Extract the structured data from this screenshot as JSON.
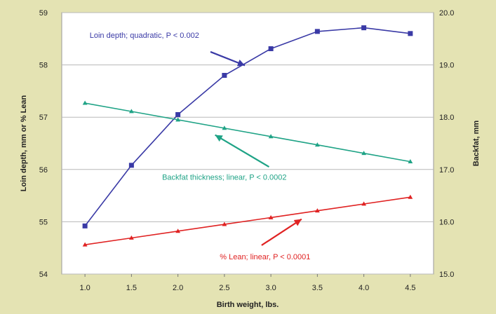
{
  "chart_data": {
    "type": "line",
    "title": "",
    "xlabel": "Birth weight, lbs.",
    "ylabel_left": "Loin depth, mm or % Lean",
    "ylabel_right": "Backfat, mm",
    "xlim": [
      0.75,
      4.75
    ],
    "ylim_left": [
      54,
      59
    ],
    "ylim_right": [
      15.0,
      20.0
    ],
    "x_ticks": [
      "1.0",
      "1.5",
      "2.0",
      "2.5",
      "3.0",
      "3.5",
      "4.0",
      "4.5"
    ],
    "y_left_ticks": [
      "54",
      "55",
      "56",
      "57",
      "58",
      "59"
    ],
    "y_right_ticks": [
      "15.0",
      "16.0",
      "17.0",
      "18.0",
      "19.0",
      "20.0"
    ],
    "grid": true,
    "legend": "none",
    "colors": {
      "loin": "#3a3aa6",
      "backfat": "#1fa386",
      "lean": "#e02222",
      "plot_bg": "#ffffff",
      "page_bg": "#e4e3b3"
    },
    "series": [
      {
        "key": "loin",
        "axis": "left",
        "marker": "square",
        "x": [
          1.0,
          1.5,
          2.0,
          2.5,
          3.0,
          3.5,
          4.0,
          4.5
        ],
        "values": [
          54.92,
          56.08,
          57.05,
          57.8,
          58.31,
          58.64,
          58.71,
          58.6
        ]
      },
      {
        "key": "backfat",
        "axis": "right",
        "marker": "triangle",
        "x": [
          1.0,
          1.5,
          2.0,
          2.5,
          3.0,
          3.5,
          4.0,
          4.5
        ],
        "values": [
          18.27,
          18.11,
          17.95,
          17.79,
          17.63,
          17.47,
          17.31,
          17.15
        ]
      },
      {
        "key": "lean",
        "axis": "left",
        "marker": "triangle",
        "x": [
          1.0,
          1.5,
          2.0,
          2.5,
          3.0,
          3.5,
          4.0,
          4.5
        ],
        "values": [
          54.56,
          54.69,
          54.82,
          54.95,
          55.08,
          55.21,
          55.34,
          55.47
        ]
      }
    ],
    "annotations": [
      {
        "key": "loin",
        "text": "Loin depth; quadratic, P < 0.002",
        "text_x": 1.05,
        "text_y": 58.52,
        "axis": "left",
        "arrow_from": [
          2.35,
          58.25
        ],
        "arrow_to": [
          2.72,
          57.99
        ]
      },
      {
        "key": "backfat",
        "text": "Backfat thickness; linear, P < 0.0002",
        "text_x": 1.83,
        "text_y": 55.8,
        "axis": "left",
        "arrow_from": [
          2.98,
          56.05
        ],
        "arrow_to": [
          2.4,
          56.66
        ]
      },
      {
        "key": "lean",
        "text": "% Lean; linear, P < 0.0001",
        "text_x": 2.45,
        "text_y": 54.28,
        "axis": "left",
        "arrow_from": [
          2.9,
          54.55
        ],
        "arrow_to": [
          3.33,
          55.05
        ]
      }
    ]
  }
}
